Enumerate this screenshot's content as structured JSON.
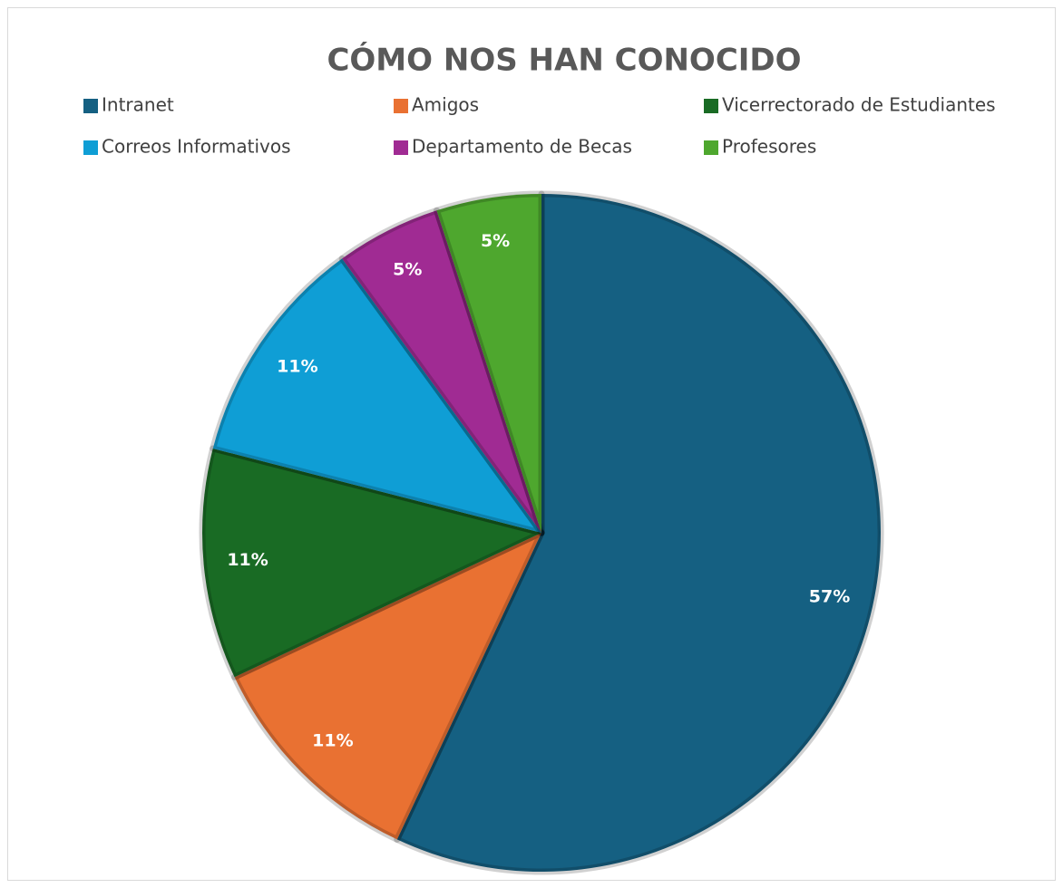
{
  "chart_data": {
    "type": "pie",
    "title": "CÓMO NOS HAN CONOCIDO",
    "categories": [
      "Intranet",
      "Amigos",
      "Vicerrectorado de Estudiantes",
      "Correos Informativos",
      "Departamento de Becas",
      "Profesores"
    ],
    "values": [
      57,
      11,
      11,
      11,
      5,
      5
    ],
    "value_labels": [
      "57%",
      "11%",
      "11%",
      "11%",
      "5%",
      "5%"
    ],
    "colors": [
      "#156082",
      "#e97132",
      "#196b24",
      "#0f9ed5",
      "#a02b93",
      "#4ea72e"
    ],
    "legend": "top"
  }
}
